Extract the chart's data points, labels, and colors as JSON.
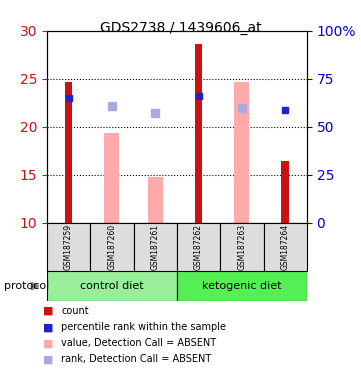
{
  "title": "GDS2738 / 1439606_at",
  "samples": [
    "GSM187259",
    "GSM187260",
    "GSM187261",
    "GSM187262",
    "GSM187263",
    "GSM187264"
  ],
  "groups": [
    "control diet",
    "control diet",
    "control diet",
    "ketogenic diet",
    "ketogenic diet",
    "ketogenic diet"
  ],
  "group_labels": [
    "control diet",
    "ketogenic diet"
  ],
  "group_colors": [
    "#aaffaa",
    "#55ee55"
  ],
  "ylim_left": [
    10,
    30
  ],
  "ylim_right": [
    0,
    100
  ],
  "yticks_left": [
    10,
    15,
    20,
    25,
    30
  ],
  "yticks_right": [
    0,
    25,
    50,
    75,
    100
  ],
  "red_bars": [
    24.7,
    null,
    null,
    28.6,
    null,
    16.4
  ],
  "pink_bars": [
    null,
    19.3,
    14.8,
    null,
    24.7,
    null
  ],
  "blue_squares": [
    23.0,
    null,
    null,
    23.2,
    null,
    21.7
  ],
  "lavender_squares": [
    null,
    22.2,
    21.4,
    null,
    21.9,
    null
  ],
  "bar_bottom": 10,
  "red_bar_color": "#cc1111",
  "pink_bar_color": "#ffaaaa",
  "blue_sq_color": "#2222cc",
  "lavender_sq_color": "#aaaadd",
  "legend_items": [
    {
      "color": "#cc1111",
      "marker": "s",
      "label": "count"
    },
    {
      "color": "#2222cc",
      "marker": "s",
      "label": "percentile rank within the sample"
    },
    {
      "color": "#ffaaaa",
      "marker": "s",
      "label": "value, Detection Call = ABSENT"
    },
    {
      "color": "#aaaadd",
      "marker": "s",
      "label": "rank, Detection Call = ABSENT"
    }
  ],
  "protocol_label": "protocol",
  "left_tick_color": "#cc1111",
  "right_tick_color": "#0000cc"
}
